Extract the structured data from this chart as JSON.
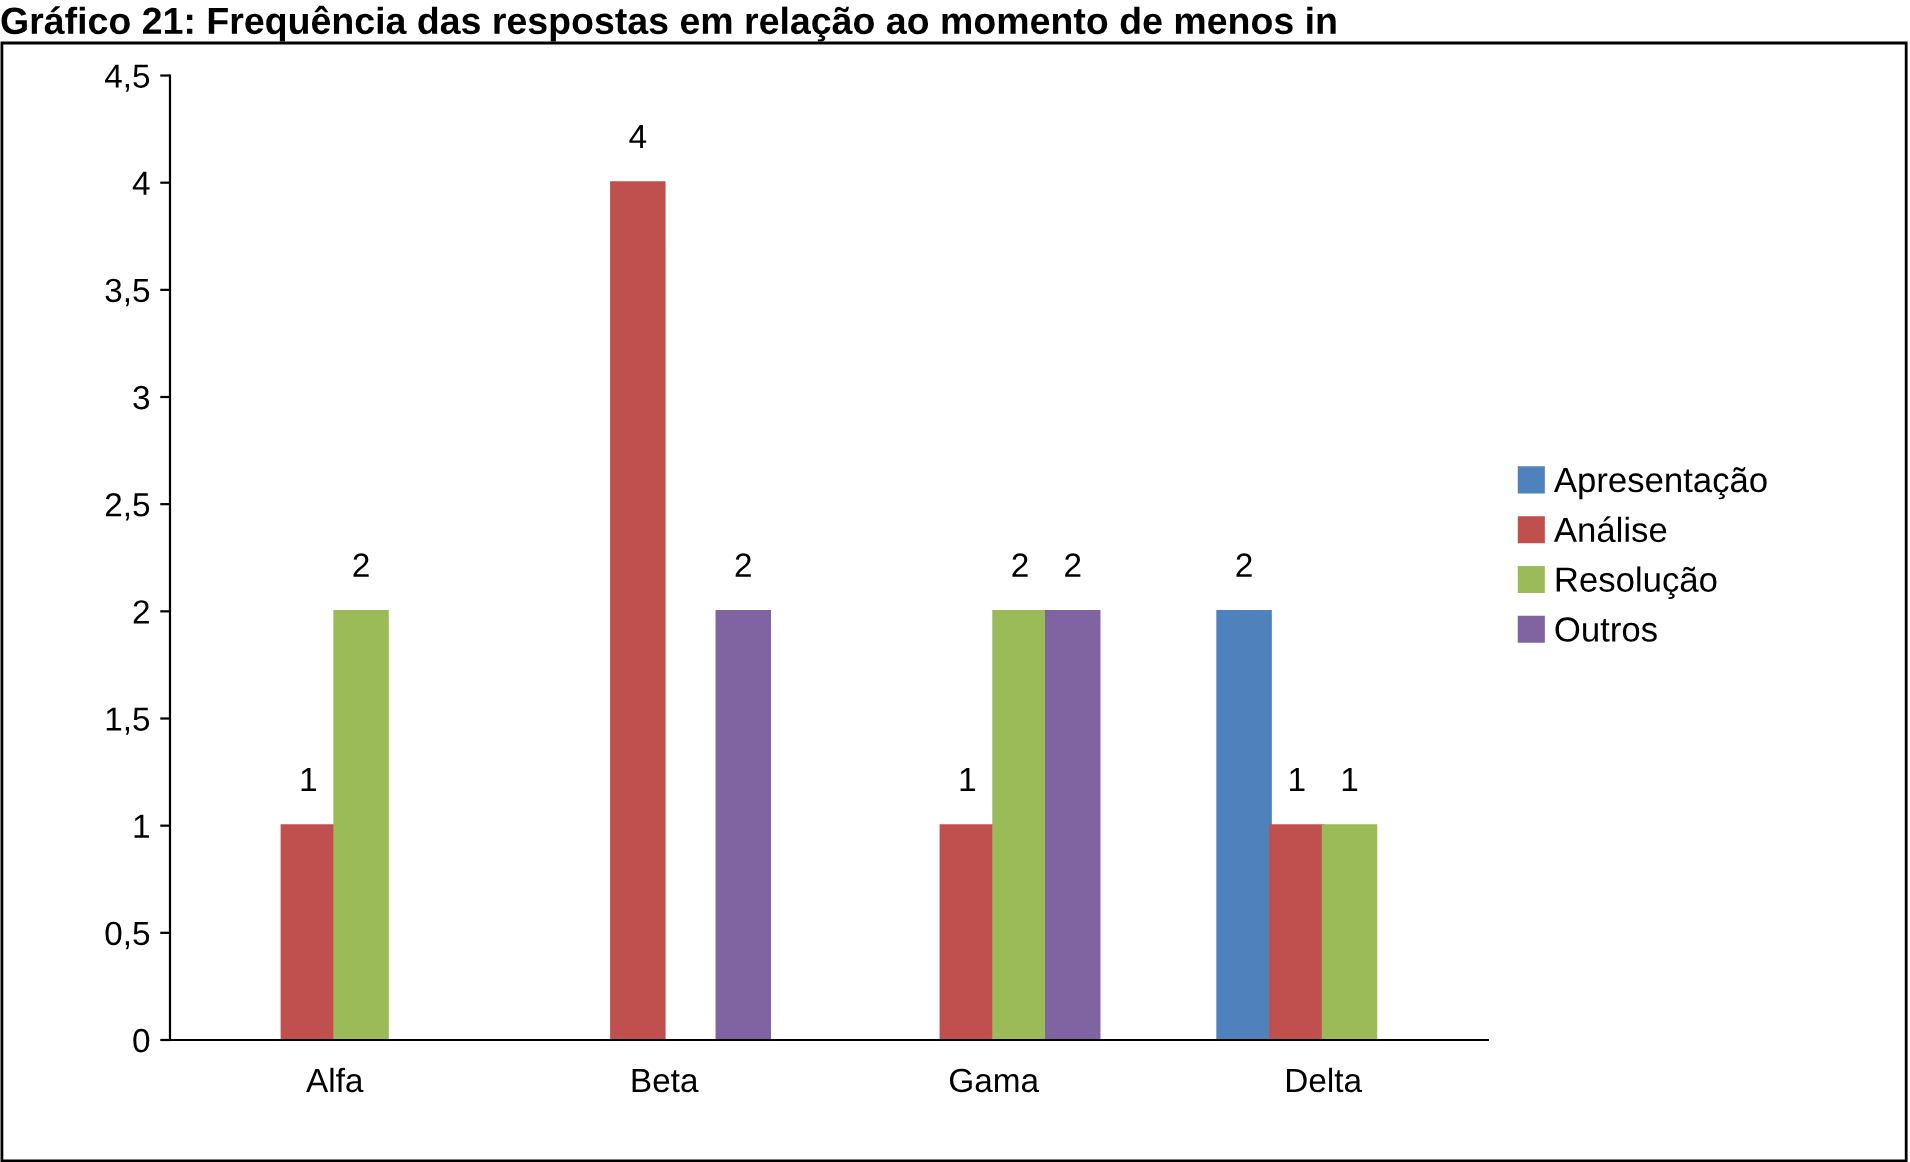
{
  "chart_data": {
    "type": "bar",
    "title": "Gráfico 21: Frequência das respostas em relação ao momento de menos in",
    "categories": [
      "Alfa",
      "Beta",
      "Gama",
      "Delta"
    ],
    "series": [
      {
        "name": "Apresentação",
        "color": "#4f81bd",
        "values": [
          null,
          null,
          null,
          2
        ]
      },
      {
        "name": "Análise",
        "color": "#c0504d",
        "values": [
          1,
          4,
          1,
          1
        ]
      },
      {
        "name": "Resolução",
        "color": "#9bbb59",
        "values": [
          2,
          null,
          2,
          1
        ]
      },
      {
        "name": "Outros",
        "color": "#8064a2",
        "values": [
          null,
          2,
          2,
          null
        ]
      }
    ],
    "ylim": [
      0,
      4.5
    ],
    "yticks": [
      0,
      {
        "value": 0.5,
        "label": "0,5"
      },
      1,
      {
        "value": 1.5,
        "label": "1,5"
      },
      2,
      {
        "value": 2.5,
        "label": "2,5"
      },
      3,
      {
        "value": 3.5,
        "label": "3,5"
      },
      4,
      {
        "value": 4.5,
        "label": "4,5"
      }
    ],
    "data_labels": true,
    "grid": false,
    "legend": "right"
  }
}
